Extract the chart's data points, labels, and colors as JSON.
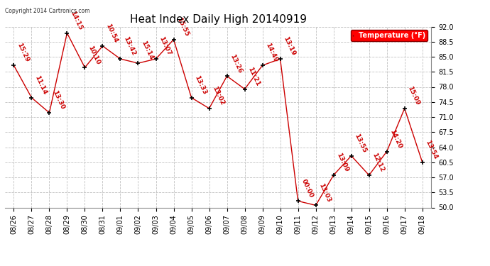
{
  "title": "Heat Index Daily High 20140919",
  "copyright_text": "Copyright 2014 Cartronics.com",
  "legend_label": "Temperature (°F)",
  "dates": [
    "08/26",
    "08/27",
    "08/28",
    "08/29",
    "08/30",
    "08/31",
    "09/01",
    "09/02",
    "09/03",
    "09/04",
    "09/05",
    "09/06",
    "09/07",
    "09/08",
    "09/09",
    "09/10",
    "09/11",
    "09/12",
    "09/13",
    "09/14",
    "09/15",
    "09/16",
    "09/17",
    "09/18"
  ],
  "values": [
    83.0,
    75.5,
    72.0,
    90.5,
    82.5,
    87.5,
    84.5,
    83.5,
    84.5,
    89.0,
    75.5,
    73.0,
    80.5,
    77.5,
    83.0,
    84.5,
    51.5,
    50.5,
    57.5,
    62.0,
    57.5,
    63.0,
    73.0,
    60.5
  ],
  "annotations": [
    "15:29",
    "11:14",
    "13:30",
    "14:15",
    "10:10",
    "10:54",
    "13:42",
    "15:14",
    "13:07",
    "15:55",
    "13:33",
    "13:02",
    "13:26",
    "11:21",
    "14:49",
    "13:19",
    "00:00",
    "13:03",
    "13:09",
    "13:55",
    "12:12",
    "14:20",
    "15:09",
    "13:54"
  ],
  "ylim": [
    50.0,
    92.0
  ],
  "yticks": [
    50.0,
    53.5,
    57.0,
    60.5,
    64.0,
    67.5,
    71.0,
    74.5,
    78.0,
    81.5,
    85.0,
    88.5,
    92.0
  ],
  "line_color": "#cc0000",
  "marker_color": "#000000",
  "bg_color": "#ffffff",
  "grid_color": "#c0c0c0",
  "annotation_color": "#cc0000",
  "title_fontsize": 11,
  "annotation_fontsize": 6.5,
  "tick_fontsize": 7,
  "copyright_fontsize": 5.5,
  "legend_fontsize": 7
}
